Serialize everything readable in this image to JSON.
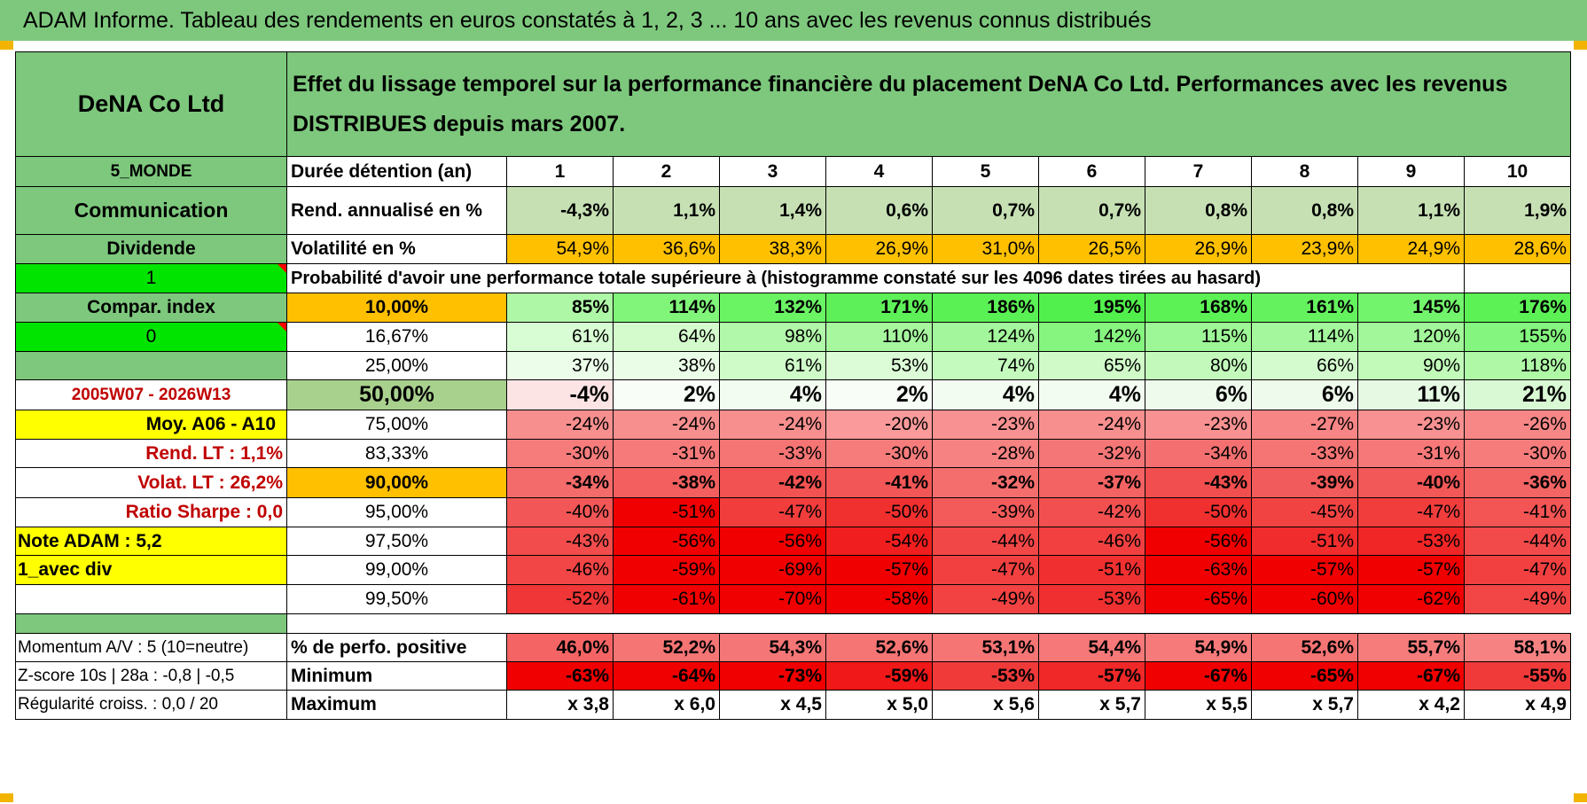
{
  "title": "ADAM Informe. Tableau des rendements en euros constatés à 1, 2, 3 ... 10 ans avec les revenus connus distribués",
  "header": {
    "company": "DeNA Co Ltd",
    "description": "Effet du lissage temporel sur la performance financière du placement DeNA Co Ltd. Performances avec les revenus DISTRIBUES depuis mars 2007."
  },
  "left_labels": {
    "zone": "5_MONDE",
    "sector": "Communication",
    "income": "Dividende",
    "flag1": "1",
    "compar_index": "Compar. index",
    "flag0": "0",
    "empty": "",
    "period": "2005W07 - 2026W13",
    "moy": "Moy. A06 - A10",
    "rend_lt": "Rend. LT :   1,1%",
    "volat_lt": "Volat. LT :   26,2%",
    "sharpe": "Ratio Sharpe :   0,0",
    "note": "Note ADAM : 5,2",
    "avec_div": "1_avec div",
    "blank": ""
  },
  "years_label": "Durée détention (an)",
  "years": [
    "1",
    "2",
    "3",
    "4",
    "5",
    "6",
    "7",
    "8",
    "9",
    "10"
  ],
  "rend_label": "Rend. annualisé en %",
  "rend": [
    "-4,3%",
    "1,1%",
    "1,4%",
    "0,6%",
    "0,7%",
    "0,7%",
    "0,8%",
    "0,8%",
    "1,1%",
    "1,9%"
  ],
  "vol_label": "Volatilité en %",
  "vol": [
    "54,9%",
    "36,6%",
    "38,3%",
    "26,9%",
    "31,0%",
    "26,5%",
    "26,9%",
    "23,9%",
    "24,9%",
    "28,6%"
  ],
  "prob_title": "Probabilité d'avoir une performance totale supérieure à (histogramme constaté sur les 4096 dates tirées au hasard)",
  "percentiles": [
    {
      "p": "10,00%",
      "values": [
        "85%",
        "114%",
        "132%",
        "171%",
        "186%",
        "195%",
        "168%",
        "161%",
        "145%",
        "176%"
      ]
    },
    {
      "p": "16,67%",
      "values": [
        "61%",
        "64%",
        "98%",
        "110%",
        "124%",
        "142%",
        "115%",
        "114%",
        "120%",
        "155%"
      ]
    },
    {
      "p": "25,00%",
      "values": [
        "37%",
        "38%",
        "61%",
        "53%",
        "74%",
        "65%",
        "80%",
        "66%",
        "90%",
        "118%"
      ]
    },
    {
      "p": "50,00%",
      "values": [
        "-4%",
        "2%",
        "4%",
        "2%",
        "4%",
        "4%",
        "6%",
        "6%",
        "11%",
        "21%"
      ]
    },
    {
      "p": "75,00%",
      "values": [
        "-24%",
        "-24%",
        "-24%",
        "-20%",
        "-23%",
        "-24%",
        "-23%",
        "-27%",
        "-23%",
        "-26%"
      ]
    },
    {
      "p": "83,33%",
      "values": [
        "-30%",
        "-31%",
        "-33%",
        "-30%",
        "-28%",
        "-32%",
        "-34%",
        "-33%",
        "-31%",
        "-30%"
      ]
    },
    {
      "p": "90,00%",
      "values": [
        "-34%",
        "-38%",
        "-42%",
        "-41%",
        "-32%",
        "-37%",
        "-43%",
        "-39%",
        "-40%",
        "-36%"
      ]
    },
    {
      "p": "95,00%",
      "values": [
        "-40%",
        "-51%",
        "-47%",
        "-50%",
        "-39%",
        "-42%",
        "-50%",
        "-45%",
        "-47%",
        "-41%"
      ]
    },
    {
      "p": "97,50%",
      "values": [
        "-43%",
        "-56%",
        "-56%",
        "-54%",
        "-44%",
        "-46%",
        "-56%",
        "-51%",
        "-53%",
        "-44%"
      ]
    },
    {
      "p": "99,00%",
      "values": [
        "-46%",
        "-59%",
        "-69%",
        "-57%",
        "-47%",
        "-51%",
        "-63%",
        "-57%",
        "-57%",
        "-47%"
      ]
    },
    {
      "p": "99,50%",
      "values": [
        "-52%",
        "-61%",
        "-70%",
        "-58%",
        "-49%",
        "-53%",
        "-65%",
        "-60%",
        "-62%",
        "-49%"
      ]
    }
  ],
  "bottom": {
    "momentum": "Momentum A/V : 5 (10=neutre)",
    "zscore": "Z-score 10s | 28a : -0,8 | -0,5",
    "regularite": "Régularité croiss. : 0,0 / 20",
    "pos_label": "% de perfo. positive",
    "pos": [
      "46,0%",
      "52,2%",
      "54,3%",
      "52,6%",
      "53,1%",
      "54,4%",
      "54,9%",
      "52,6%",
      "55,7%",
      "58,1%"
    ],
    "min_label": "Minimum",
    "min": [
      "-63%",
      "-64%",
      "-73%",
      "-59%",
      "-53%",
      "-57%",
      "-67%",
      "-65%",
      "-67%",
      "-55%"
    ],
    "max_label": "Maximum",
    "max": [
      "x 3,8",
      "x 6,0",
      "x 4,5",
      "x 5,0",
      "x 5,6",
      "x 5,7",
      "x 5,5",
      "x 5,7",
      "x 4,2",
      "x 4,9"
    ]
  },
  "colors": {
    "header_green": "#7dc87d",
    "bright_green": "#00e400",
    "yellow": "#ffff00",
    "orange": "#ffc000",
    "mid_green": "#a9d18e",
    "red_text": "#c00000"
  },
  "cell_colors": {
    "rend": [
      "#c6e0b4",
      "#c6e0b4",
      "#c6e0b4",
      "#c6e0b4",
      "#c6e0b4",
      "#c6e0b4",
      "#c6e0b4",
      "#c6e0b4",
      "#c6e0b4",
      "#c6e0b4"
    ],
    "vol": [
      "#ffc000",
      "#ffc000",
      "#ffc000",
      "#ffc000",
      "#ffc000",
      "#ffc000",
      "#ffc000",
      "#ffc000",
      "#ffc000",
      "#ffc000"
    ],
    "pct": [
      [
        "#aef7a6",
        "#80f57a",
        "#6af464",
        "#5ef058",
        "#5af154",
        "#52f04c",
        "#5cf256",
        "#64f35e",
        "#72f46c",
        "#5cf256"
      ],
      [
        "#d8fcd3",
        "#d3fbcc",
        "#b2f8aa",
        "#a6f79e",
        "#a3f69c",
        "#86f580",
        "#9ef796",
        "#a4f79c",
        "#a2f79a",
        "#84f57e"
      ],
      [
        "#ecfde9",
        "#eafde6",
        "#cffbc9",
        "#dcfcd7",
        "#c4fabd",
        "#d0fbc9",
        "#c3fabc",
        "#d4fbce",
        "#c1fab9",
        "#aef8a6"
      ],
      [
        "#fde4e4",
        "#f8fdf7",
        "#f3fcf1",
        "#f8fdf7",
        "#f3fcf1",
        "#f3fcf1",
        "#eefbec",
        "#eefbec",
        "#e6fae3",
        "#d9f8d4"
      ],
      [
        "#f88f8f",
        "#f88f8f",
        "#f88f8f",
        "#fa9a9a",
        "#f89191",
        "#f88f8f",
        "#f89191",
        "#f78585",
        "#f89191",
        "#f78787"
      ],
      [
        "#f67c7c",
        "#f67a7a",
        "#f57474",
        "#f67c7c",
        "#f78282",
        "#f57676",
        "#f47070",
        "#f57474",
        "#f67878",
        "#f67c7c"
      ],
      [
        "#f46b6b",
        "#f35f5f",
        "#f25252",
        "#f25656",
        "#f56e6e",
        "#f36363",
        "#f14f4f",
        "#f25b5b",
        "#f25858",
        "#f36565"
      ],
      [
        "#f25656",
        "#f00000",
        "#f23d3d",
        "#f02f2f",
        "#f35b5b",
        "#f25050",
        "#f02f2f",
        "#f24343",
        "#f23d3d",
        "#f35454"
      ],
      [
        "#f24c4c",
        "#f00000",
        "#f00000",
        "#f01e1e",
        "#f24747",
        "#f24040",
        "#f00000",
        "#f02c2c",
        "#f02626",
        "#f24a4a"
      ],
      [
        "#f24545",
        "#f00000",
        "#f00000",
        "#f00000",
        "#f24040",
        "#f03030",
        "#f00000",
        "#f00000",
        "#f00000",
        "#f24040"
      ],
      [
        "#f03636",
        "#f00000",
        "#f00000",
        "#f00000",
        "#f24242",
        "#f03030",
        "#f00000",
        "#f00000",
        "#f00000",
        "#f24545"
      ]
    ],
    "pos": [
      "#f46464",
      "#f57474",
      "#f57676",
      "#f57474",
      "#f57474",
      "#f67878",
      "#f67a7a",
      "#f57474",
      "#f67c7c",
      "#f78282"
    ],
    "min": [
      "#f00000",
      "#f00000",
      "#f00000",
      "#f01818",
      "#f03a3a",
      "#f02828",
      "#f00000",
      "#f00000",
      "#f00000",
      "#f03a3a"
    ]
  }
}
